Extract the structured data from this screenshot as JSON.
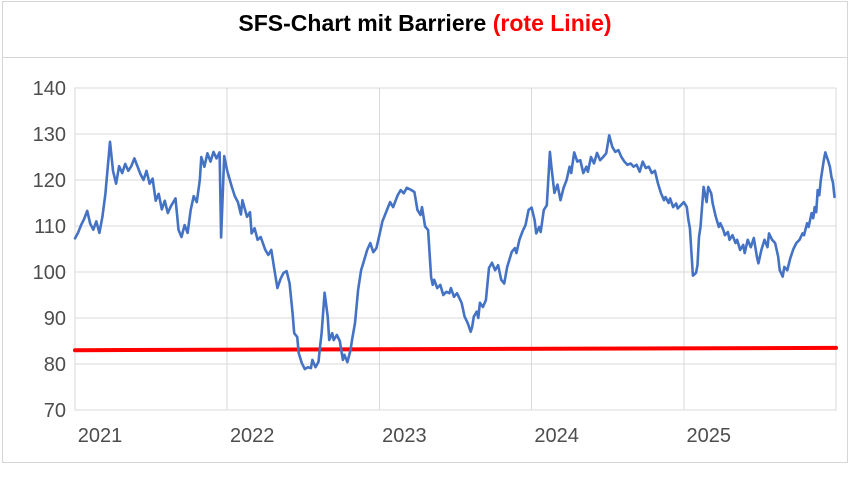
{
  "title": {
    "main": "SFS-Chart mit Barriere ",
    "highlight": "(rote Linie)"
  },
  "colors": {
    "series": "#4472C4",
    "barrier": "#FF0000",
    "gridline": "#D9D9D9",
    "axis_text": "#4D4D4D",
    "frame": "#D6D6D6",
    "title_text": "#000000",
    "title_highlight": "#FF0000"
  },
  "chart_data": {
    "type": "line",
    "title": "SFS-Chart mit Barriere (rote Linie)",
    "xlabel": "",
    "ylabel": "",
    "x_min": 2021,
    "x_max": 2026,
    "y_min": 70,
    "y_max": 140,
    "y_ticks": [
      70,
      80,
      90,
      100,
      110,
      120,
      130,
      140
    ],
    "x_ticks": [
      2021,
      2022,
      2023,
      2024,
      2025
    ],
    "grid": true,
    "legend": "none",
    "series": [
      {
        "name": "SFS-Chart",
        "color": "#4472C4",
        "points": [
          [
            2021.0,
            107.3
          ],
          [
            2021.02,
            108.5
          ],
          [
            2021.04,
            110.2
          ],
          [
            2021.06,
            111.5
          ],
          [
            2021.08,
            113.3
          ],
          [
            2021.1,
            110.5
          ],
          [
            2021.12,
            109.2
          ],
          [
            2021.14,
            111.0
          ],
          [
            2021.16,
            108.5
          ],
          [
            2021.18,
            112.0
          ],
          [
            2021.2,
            117.0
          ],
          [
            2021.23,
            128.3
          ],
          [
            2021.25,
            122.0
          ],
          [
            2021.27,
            119.2
          ],
          [
            2021.29,
            123.0
          ],
          [
            2021.31,
            121.5
          ],
          [
            2021.33,
            123.5
          ],
          [
            2021.35,
            122.0
          ],
          [
            2021.37,
            123.0
          ],
          [
            2021.39,
            124.7
          ],
          [
            2021.41,
            123.0
          ],
          [
            2021.43,
            121.3
          ],
          [
            2021.45,
            120.0
          ],
          [
            2021.47,
            122.0
          ],
          [
            2021.49,
            119.2
          ],
          [
            2021.51,
            120.3
          ],
          [
            2021.53,
            115.5
          ],
          [
            2021.55,
            117.0
          ],
          [
            2021.57,
            113.6
          ],
          [
            2021.59,
            115.5
          ],
          [
            2021.61,
            112.8
          ],
          [
            2021.63,
            114.3
          ],
          [
            2021.66,
            116.0
          ],
          [
            2021.68,
            109.2
          ],
          [
            2021.7,
            107.6
          ],
          [
            2021.72,
            110.2
          ],
          [
            2021.74,
            108.5
          ],
          [
            2021.76,
            113.5
          ],
          [
            2021.78,
            116.5
          ],
          [
            2021.8,
            115.2
          ],
          [
            2021.82,
            120.0
          ],
          [
            2021.83,
            125.0
          ],
          [
            2021.85,
            122.9
          ],
          [
            2021.87,
            125.8
          ],
          [
            2021.89,
            124.0
          ],
          [
            2021.91,
            126.1
          ],
          [
            2021.93,
            124.7
          ],
          [
            2021.95,
            126.0
          ],
          [
            2021.96,
            107.5
          ],
          [
            2021.98,
            125.2
          ],
          [
            2022.0,
            122.0
          ],
          [
            2022.03,
            118.5
          ],
          [
            2022.05,
            116.5
          ],
          [
            2022.07,
            115.2
          ],
          [
            2022.09,
            112.5
          ],
          [
            2022.1,
            115.6
          ],
          [
            2022.13,
            112.0
          ],
          [
            2022.15,
            113.0
          ],
          [
            2022.16,
            108.4
          ],
          [
            2022.18,
            109.5
          ],
          [
            2022.2,
            107.0
          ],
          [
            2022.22,
            107.6
          ],
          [
            2022.25,
            104.8
          ],
          [
            2022.27,
            103.7
          ],
          [
            2022.29,
            104.8
          ],
          [
            2022.31,
            100.5
          ],
          [
            2022.33,
            96.5
          ],
          [
            2022.35,
            98.5
          ],
          [
            2022.37,
            99.8
          ],
          [
            2022.39,
            100.2
          ],
          [
            2022.41,
            97.5
          ],
          [
            2022.43,
            91.0
          ],
          [
            2022.44,
            86.7
          ],
          [
            2022.46,
            85.9
          ],
          [
            2022.47,
            82.4
          ],
          [
            2022.49,
            80.2
          ],
          [
            2022.51,
            78.9
          ],
          [
            2022.53,
            79.3
          ],
          [
            2022.55,
            79.1
          ],
          [
            2022.56,
            80.9
          ],
          [
            2022.58,
            79.3
          ],
          [
            2022.6,
            80.5
          ],
          [
            2022.61,
            83.7
          ],
          [
            2022.62,
            86.7
          ],
          [
            2022.64,
            95.5
          ],
          [
            2022.66,
            90.3
          ],
          [
            2022.67,
            85.2
          ],
          [
            2022.69,
            86.7
          ],
          [
            2022.7,
            85.2
          ],
          [
            2022.72,
            86.3
          ],
          [
            2022.74,
            85.0
          ],
          [
            2022.76,
            80.9
          ],
          [
            2022.77,
            82.0
          ],
          [
            2022.79,
            80.4
          ],
          [
            2022.81,
            83.0
          ],
          [
            2022.82,
            85.2
          ],
          [
            2022.84,
            88.9
          ],
          [
            2022.86,
            96.1
          ],
          [
            2022.88,
            100.4
          ],
          [
            2022.9,
            102.6
          ],
          [
            2022.92,
            104.8
          ],
          [
            2022.94,
            106.3
          ],
          [
            2022.96,
            104.3
          ],
          [
            2022.98,
            105.2
          ],
          [
            2023.0,
            108.0
          ],
          [
            2023.02,
            111.0
          ],
          [
            2023.05,
            113.5
          ],
          [
            2023.07,
            115.2
          ],
          [
            2023.09,
            114.1
          ],
          [
            2023.12,
            116.7
          ],
          [
            2023.14,
            117.8
          ],
          [
            2023.16,
            117.1
          ],
          [
            2023.18,
            118.3
          ],
          [
            2023.21,
            117.8
          ],
          [
            2023.23,
            117.4
          ],
          [
            2023.25,
            113.5
          ],
          [
            2023.27,
            112.4
          ],
          [
            2023.28,
            114.1
          ],
          [
            2023.3,
            109.9
          ],
          [
            2023.32,
            109.1
          ],
          [
            2023.34,
            98.9
          ],
          [
            2023.35,
            97.2
          ],
          [
            2023.36,
            98.3
          ],
          [
            2023.38,
            96.5
          ],
          [
            2023.4,
            97.2
          ],
          [
            2023.42,
            95.0
          ],
          [
            2023.44,
            95.7
          ],
          [
            2023.46,
            95.4
          ],
          [
            2023.47,
            96.5
          ],
          [
            2023.49,
            94.6
          ],
          [
            2023.51,
            95.4
          ],
          [
            2023.54,
            93.3
          ],
          [
            2023.56,
            90.3
          ],
          [
            2023.58,
            88.9
          ],
          [
            2023.6,
            87.0
          ],
          [
            2023.61,
            88.1
          ],
          [
            2023.62,
            90.3
          ],
          [
            2023.64,
            91.4
          ],
          [
            2023.65,
            90.0
          ],
          [
            2023.66,
            93.3
          ],
          [
            2023.68,
            92.4
          ],
          [
            2023.7,
            93.9
          ],
          [
            2023.72,
            100.9
          ],
          [
            2023.74,
            102.0
          ],
          [
            2023.76,
            100.4
          ],
          [
            2023.78,
            101.5
          ],
          [
            2023.8,
            98.3
          ],
          [
            2023.82,
            97.5
          ],
          [
            2023.84,
            101.1
          ],
          [
            2023.87,
            104.4
          ],
          [
            2023.89,
            105.2
          ],
          [
            2023.9,
            104.1
          ],
          [
            2023.92,
            107.0
          ],
          [
            2023.94,
            108.8
          ],
          [
            2023.96,
            110.2
          ],
          [
            2023.98,
            113.5
          ],
          [
            2024.0,
            114.0
          ],
          [
            2024.02,
            111.3
          ],
          [
            2024.03,
            108.4
          ],
          [
            2024.05,
            109.8
          ],
          [
            2024.06,
            108.7
          ],
          [
            2024.08,
            113.5
          ],
          [
            2024.1,
            114.5
          ],
          [
            2024.12,
            126.1
          ],
          [
            2024.13,
            122.9
          ],
          [
            2024.15,
            117.2
          ],
          [
            2024.17,
            119.0
          ],
          [
            2024.19,
            115.6
          ],
          [
            2024.21,
            118.3
          ],
          [
            2024.23,
            120.0
          ],
          [
            2024.25,
            122.9
          ],
          [
            2024.26,
            121.5
          ],
          [
            2024.28,
            126.0
          ],
          [
            2024.3,
            124.0
          ],
          [
            2024.32,
            124.3
          ],
          [
            2024.34,
            121.5
          ],
          [
            2024.36,
            122.9
          ],
          [
            2024.37,
            121.8
          ],
          [
            2024.39,
            125.0
          ],
          [
            2024.41,
            123.6
          ],
          [
            2024.43,
            125.9
          ],
          [
            2024.45,
            124.3
          ],
          [
            2024.47,
            125.0
          ],
          [
            2024.49,
            125.8
          ],
          [
            2024.51,
            129.7
          ],
          [
            2024.53,
            127.2
          ],
          [
            2024.55,
            126.1
          ],
          [
            2024.57,
            126.5
          ],
          [
            2024.59,
            125.0
          ],
          [
            2024.61,
            124.0
          ],
          [
            2024.63,
            123.3
          ],
          [
            2024.65,
            123.6
          ],
          [
            2024.67,
            122.9
          ],
          [
            2024.69,
            123.3
          ],
          [
            2024.71,
            121.8
          ],
          [
            2024.73,
            124.0
          ],
          [
            2024.75,
            122.6
          ],
          [
            2024.77,
            122.9
          ],
          [
            2024.79,
            121.5
          ],
          [
            2024.81,
            122.0
          ],
          [
            2024.83,
            119.3
          ],
          [
            2024.85,
            117.1
          ],
          [
            2024.87,
            115.6
          ],
          [
            2024.88,
            116.3
          ],
          [
            2024.9,
            115.0
          ],
          [
            2024.91,
            116.0
          ],
          [
            2024.93,
            114.1
          ],
          [
            2024.95,
            114.9
          ],
          [
            2024.96,
            113.8
          ],
          [
            2024.98,
            114.5
          ],
          [
            2025.0,
            115.2
          ],
          [
            2025.02,
            114.1
          ],
          [
            2025.03,
            111.3
          ],
          [
            2025.04,
            109.5
          ],
          [
            2025.06,
            99.2
          ],
          [
            2025.08,
            99.8
          ],
          [
            2025.09,
            101.5
          ],
          [
            2025.1,
            107.6
          ],
          [
            2025.11,
            109.8
          ],
          [
            2025.13,
            118.5
          ],
          [
            2025.15,
            115.2
          ],
          [
            2025.16,
            118.5
          ],
          [
            2025.18,
            117.1
          ],
          [
            2025.19,
            114.9
          ],
          [
            2025.21,
            112.0
          ],
          [
            2025.23,
            109.8
          ],
          [
            2025.24,
            110.6
          ],
          [
            2025.26,
            109.1
          ],
          [
            2025.27,
            108.0
          ],
          [
            2025.29,
            108.7
          ],
          [
            2025.3,
            107.0
          ],
          [
            2025.32,
            108.0
          ],
          [
            2025.34,
            106.3
          ],
          [
            2025.35,
            107.0
          ],
          [
            2025.37,
            104.8
          ],
          [
            2025.39,
            105.9
          ],
          [
            2025.4,
            104.1
          ],
          [
            2025.42,
            107.0
          ],
          [
            2025.44,
            105.4
          ],
          [
            2025.46,
            107.4
          ],
          [
            2025.48,
            103.3
          ],
          [
            2025.49,
            101.9
          ],
          [
            2025.51,
            104.8
          ],
          [
            2025.53,
            107.0
          ],
          [
            2025.55,
            105.4
          ],
          [
            2025.56,
            108.4
          ],
          [
            2025.58,
            107.0
          ],
          [
            2025.6,
            106.3
          ],
          [
            2025.62,
            103.3
          ],
          [
            2025.63,
            100.4
          ],
          [
            2025.65,
            99.0
          ],
          [
            2025.66,
            101.1
          ],
          [
            2025.68,
            100.4
          ],
          [
            2025.7,
            103.0
          ],
          [
            2025.72,
            105.0
          ],
          [
            2025.74,
            106.3
          ],
          [
            2025.76,
            107.0
          ],
          [
            2025.78,
            108.4
          ],
          [
            2025.79,
            108.0
          ],
          [
            2025.81,
            110.6
          ],
          [
            2025.82,
            109.8
          ],
          [
            2025.84,
            112.8
          ],
          [
            2025.85,
            111.7
          ],
          [
            2025.86,
            114.1
          ],
          [
            2025.87,
            113.0
          ],
          [
            2025.88,
            117.8
          ],
          [
            2025.89,
            116.7
          ],
          [
            2025.9,
            120.0
          ],
          [
            2025.92,
            124.3
          ],
          [
            2025.93,
            126.0
          ],
          [
            2025.95,
            124.0
          ],
          [
            2025.96,
            122.9
          ],
          [
            2025.97,
            120.7
          ],
          [
            2025.98,
            119.4
          ],
          [
            2025.99,
            116.3
          ]
        ]
      }
    ],
    "barrier": {
      "name": "Barriere (rote Linie)",
      "color": "#FF0000",
      "start": [
        2021.0,
        83.0
      ],
      "end": [
        2026.0,
        83.5
      ]
    }
  }
}
